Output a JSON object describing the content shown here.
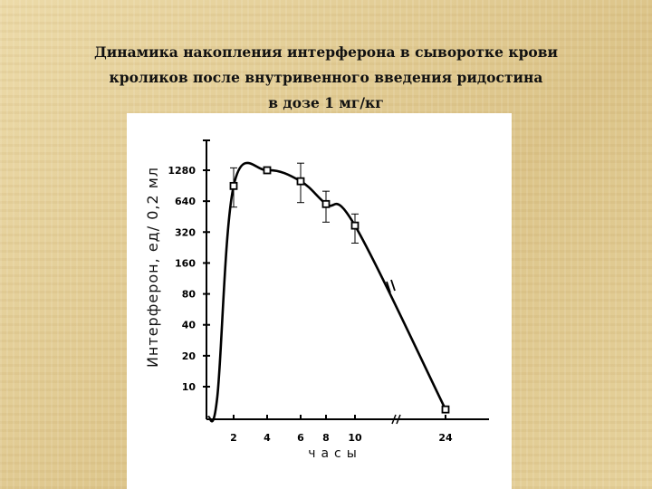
{
  "title_lines": [
    "Динамика накопления интерферона в сыворотке крови",
    "кроликов после внутривенного введения ридостина",
    "в дозе 1 мг/кг"
  ],
  "chart_data": {
    "type": "line",
    "title": "Динамика накопления интерферона в сыворотке крови кроликов после внутривенного введения ридостина в дозе 1 мг/кг",
    "xlabel": "часы",
    "ylabel": "Интерферон, ед/ 0,2 мл",
    "x_ticks": [
      2,
      4,
      6,
      8,
      10,
      24
    ],
    "y_ticks": [
      10,
      20,
      40,
      80,
      160,
      320,
      640,
      1280
    ],
    "y_scale": "log2",
    "axis_break_x": true,
    "marker": "open-square",
    "x": [
      2,
      4,
      6,
      8,
      10,
      24
    ],
    "y": [
      900,
      1280,
      1000,
      600,
      370,
      6
    ],
    "error_bars": [
      {
        "x": 2,
        "low": 560,
        "high": 1350
      },
      {
        "x": 6,
        "low": 620,
        "high": 1500
      },
      {
        "x": 8,
        "low": 400,
        "high": 800
      },
      {
        "x": 10,
        "low": 250,
        "high": 480
      }
    ],
    "line_color": "#000000"
  }
}
